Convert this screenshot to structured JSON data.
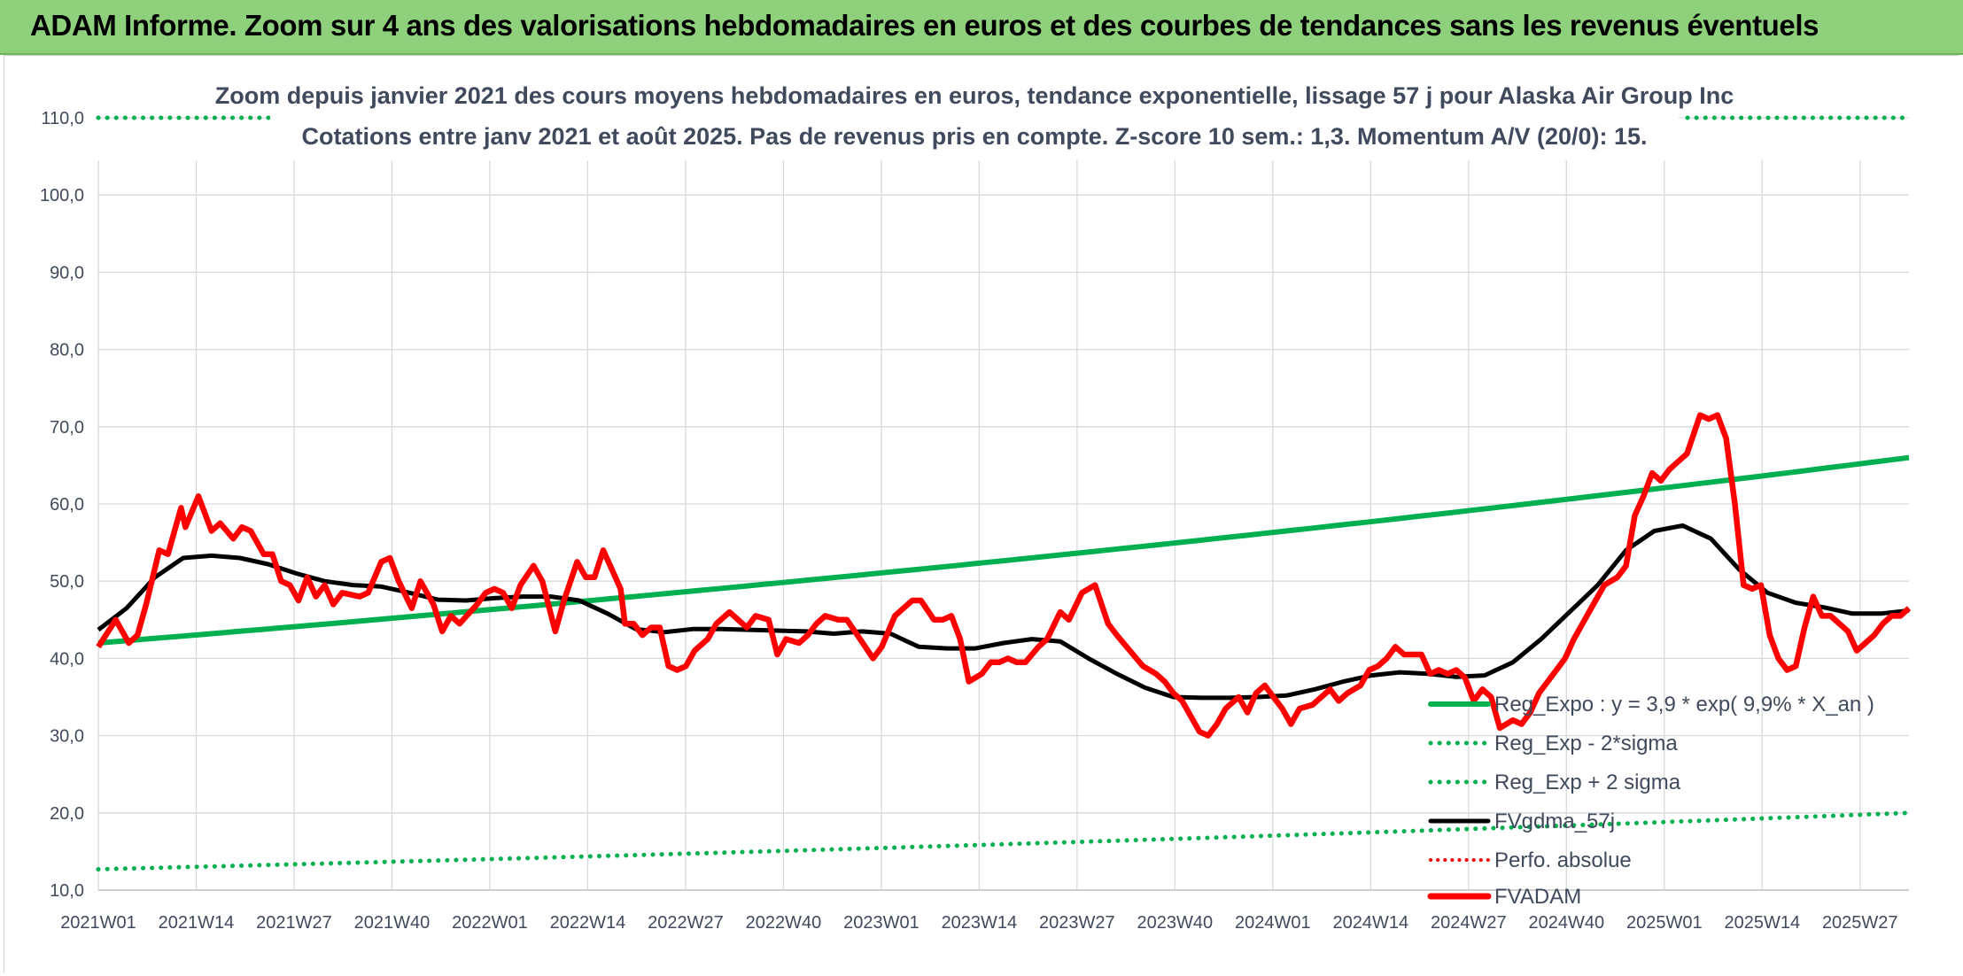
{
  "header": {
    "title": "ADAM Informe. Zoom sur 4 ans des valorisations hebdomadaires en euros et des courbes de tendances sans les revenus éventuels"
  },
  "colors": {
    "banner": "#8fd07c",
    "trend": "#00b050",
    "fv": "#000000",
    "adam": "#ff0000",
    "perfo": "#ff0000",
    "text": "#404a5c",
    "grid": "#d9d9d9"
  },
  "chart_data": {
    "type": "line",
    "title": "Zoom depuis janvier 2021 des cours moyens hebdomadaires en euros, tendance exponentielle, lissage 57 j pour Alaska Air Group Inc",
    "subtitle": "Cotations entre janv 2021 et août 2025. Pas de revenus pris en compte. Z-score 10 sem.: 1,3. Momentum A/V (20/0): 15.",
    "ylim": [
      10,
      110
    ],
    "yticks": [
      "10,0",
      "20,0",
      "30,0",
      "40,0",
      "50,0",
      "60,0",
      "70,0",
      "80,0",
      "90,0",
      "100,0",
      "110,0"
    ],
    "x_ticks": [
      "2021W01",
      "2021W14",
      "2021W27",
      "2021W40",
      "2022W01",
      "2022W14",
      "2022W27",
      "2022W40",
      "2023W01",
      "2023W14",
      "2023W27",
      "2023W40",
      "2024W01",
      "2024W14",
      "2024W27",
      "2024W40",
      "2025W01",
      "2025W14",
      "2025W27"
    ],
    "n_weeks": 241,
    "grid": true,
    "legend_position": "bottom-right",
    "series": [
      {
        "name": "Reg_Expo : y = 3,9 * exp( 9,9% * X_an )",
        "style": "solid",
        "color": "#00b050",
        "start": 42.0,
        "end": 66.0
      },
      {
        "name": "Reg_Exp - 2*sigma",
        "style": "dotted",
        "color": "#00b050",
        "start": 12.7,
        "end": 20.0
      },
      {
        "name": "Reg_Exp + 2 sigma",
        "style": "dotted",
        "color": "#00b050",
        "start": 110.0,
        "end": 110.0
      },
      {
        "name": "FVgdma_57j",
        "style": "solid",
        "color": "#000000",
        "points": [
          [
            0,
            43.7
          ],
          [
            5,
            46.5
          ],
          [
            10,
            50.5
          ],
          [
            15,
            53.0
          ],
          [
            20,
            53.3
          ],
          [
            25,
            53.0
          ],
          [
            30,
            52.2
          ],
          [
            35,
            51.0
          ],
          [
            40,
            50.0
          ],
          [
            45,
            49.5
          ],
          [
            50,
            49.3
          ],
          [
            55,
            48.5
          ],
          [
            60,
            47.6
          ],
          [
            65,
            47.5
          ],
          [
            70,
            47.8
          ],
          [
            75,
            48.0
          ],
          [
            80,
            48.0
          ],
          [
            85,
            47.5
          ],
          [
            90,
            45.8
          ],
          [
            95,
            43.8
          ],
          [
            100,
            43.4
          ],
          [
            105,
            43.8
          ],
          [
            110,
            43.8
          ],
          [
            115,
            43.7
          ],
          [
            120,
            43.6
          ],
          [
            125,
            43.5
          ],
          [
            130,
            43.2
          ],
          [
            135,
            43.5
          ],
          [
            140,
            43.2
          ],
          [
            145,
            41.5
          ],
          [
            150,
            41.3
          ],
          [
            155,
            41.3
          ],
          [
            160,
            42.0
          ],
          [
            165,
            42.5
          ],
          [
            170,
            42.2
          ],
          [
            175,
            40.0
          ],
          [
            180,
            38.0
          ],
          [
            185,
            36.2
          ],
          [
            190,
            35.0
          ],
          [
            195,
            34.9
          ],
          [
            200,
            34.9
          ],
          [
            205,
            35.0
          ],
          [
            210,
            35.2
          ],
          [
            215,
            36.0
          ],
          [
            220,
            37.0
          ],
          [
            225,
            37.8
          ],
          [
            230,
            38.2
          ],
          [
            235,
            38.0
          ],
          [
            240,
            37.6
          ],
          [
            245,
            37.8
          ],
          [
            250,
            39.5
          ],
          [
            255,
            42.5
          ],
          [
            260,
            46.0
          ],
          [
            265,
            49.5
          ],
          [
            270,
            54.0
          ],
          [
            275,
            56.5
          ],
          [
            280,
            57.2
          ],
          [
            285,
            55.5
          ],
          [
            290,
            51.5
          ],
          [
            295,
            48.5
          ],
          [
            300,
            47.2
          ],
          [
            305,
            46.6
          ],
          [
            310,
            45.8
          ],
          [
            315,
            45.8
          ],
          [
            320,
            46.2
          ]
        ]
      },
      {
        "name": "Perfo. absolue",
        "style": "dotted",
        "color": "#ff0000",
        "points": []
      },
      {
        "name": "FVADAM",
        "style": "solid",
        "color": "#ff0000",
        "points": [
          [
            0,
            41.5
          ],
          [
            4,
            45.0
          ],
          [
            7,
            42.0
          ],
          [
            9,
            43.0
          ],
          [
            11,
            47.0
          ],
          [
            14,
            54.0
          ],
          [
            16,
            53.5
          ],
          [
            19,
            59.5
          ],
          [
            20,
            57.0
          ],
          [
            23,
            61.0
          ],
          [
            26,
            56.5
          ],
          [
            28,
            57.5
          ],
          [
            31,
            55.5
          ],
          [
            33,
            57.0
          ],
          [
            35,
            56.5
          ],
          [
            38,
            53.5
          ],
          [
            40,
            53.5
          ],
          [
            42,
            50.0
          ],
          [
            44,
            49.5
          ],
          [
            46,
            47.5
          ],
          [
            48,
            50.5
          ],
          [
            50,
            48.0
          ],
          [
            52,
            49.5
          ],
          [
            54,
            47.0
          ],
          [
            56,
            48.5
          ],
          [
            60,
            48.0
          ],
          [
            62,
            48.5
          ],
          [
            65,
            52.5
          ],
          [
            67,
            53.0
          ],
          [
            69,
            50.0
          ],
          [
            72,
            46.5
          ],
          [
            74,
            50.0
          ],
          [
            77,
            47.0
          ],
          [
            79,
            43.5
          ],
          [
            81,
            45.5
          ],
          [
            83,
            44.5
          ],
          [
            87,
            47.0
          ],
          [
            89,
            48.5
          ],
          [
            91,
            49.0
          ],
          [
            93,
            48.5
          ],
          [
            95,
            46.5
          ],
          [
            97,
            49.5
          ],
          [
            100,
            52.0
          ],
          [
            102,
            50.0
          ],
          [
            105,
            43.5
          ],
          [
            107,
            47.5
          ],
          [
            110,
            52.5
          ],
          [
            112,
            50.5
          ],
          [
            114,
            50.5
          ],
          [
            116,
            54.0
          ],
          [
            118,
            51.5
          ],
          [
            120,
            49.0
          ],
          [
            121,
            44.5
          ],
          [
            123,
            44.5
          ],
          [
            125,
            43.0
          ],
          [
            127,
            44.0
          ],
          [
            129,
            44.0
          ],
          [
            131,
            39.0
          ],
          [
            133,
            38.5
          ],
          [
            135,
            39.0
          ],
          [
            137,
            41.0
          ],
          [
            140,
            42.5
          ],
          [
            142,
            44.5
          ],
          [
            145,
            46.0
          ],
          [
            147,
            45.0
          ],
          [
            149,
            44.0
          ],
          [
            151,
            45.5
          ],
          [
            154,
            45.0
          ],
          [
            156,
            40.5
          ],
          [
            158,
            42.5
          ],
          [
            161,
            42.0
          ],
          [
            163,
            43.0
          ],
          [
            165,
            44.5
          ],
          [
            167,
            45.5
          ],
          [
            170,
            45.0
          ],
          [
            172,
            45.0
          ],
          [
            175,
            42.5
          ],
          [
            178,
            40.0
          ],
          [
            180,
            41.5
          ],
          [
            183,
            45.5
          ],
          [
            185,
            46.5
          ],
          [
            187,
            47.5
          ],
          [
            189,
            47.5
          ],
          [
            192,
            45.0
          ],
          [
            194,
            45.0
          ],
          [
            196,
            45.5
          ],
          [
            198,
            42.5
          ],
          [
            200,
            37.0
          ],
          [
            203,
            38.0
          ],
          [
            205,
            39.5
          ],
          [
            207,
            39.5
          ],
          [
            209,
            40.0
          ],
          [
            211,
            39.5
          ],
          [
            213,
            39.5
          ],
          [
            216,
            41.5
          ],
          [
            218,
            42.5
          ],
          [
            221,
            46.0
          ],
          [
            223,
            45.0
          ],
          [
            226,
            48.5
          ],
          [
            229,
            49.5
          ],
          [
            232,
            44.5
          ],
          [
            234,
            43.0
          ],
          [
            237,
            41.0
          ],
          [
            240,
            39.0
          ],
          [
            243,
            38.0
          ],
          [
            245,
            37.0
          ],
          [
            247,
            35.5
          ],
          [
            249,
            34.5
          ],
          [
            251,
            32.5
          ],
          [
            253,
            30.5
          ],
          [
            255,
            30.0
          ],
          [
            257,
            31.5
          ],
          [
            259,
            33.5
          ],
          [
            262,
            35.0
          ],
          [
            264,
            33.0
          ],
          [
            266,
            35.5
          ],
          [
            268,
            36.5
          ],
          [
            270,
            35.0
          ],
          [
            272,
            33.5
          ],
          [
            274,
            31.5
          ],
          [
            276,
            33.5
          ],
          [
            279,
            34.0
          ],
          [
            281,
            35.0
          ],
          [
            283,
            36.0
          ],
          [
            285,
            34.5
          ],
          [
            287,
            35.5
          ],
          [
            290,
            36.5
          ],
          [
            292,
            38.5
          ],
          [
            294,
            39.0
          ],
          [
            296,
            40.0
          ],
          [
            298,
            41.5
          ],
          [
            300,
            40.5
          ],
          [
            302,
            40.5
          ],
          [
            304,
            40.5
          ],
          [
            306,
            38.0
          ],
          [
            308,
            38.5
          ],
          [
            310,
            38.0
          ],
          [
            312,
            38.5
          ],
          [
            314,
            37.5
          ],
          [
            316,
            34.5
          ],
          [
            318,
            36.0
          ],
          [
            320,
            35.0
          ],
          [
            322,
            31.0
          ],
          [
            325,
            32.0
          ],
          [
            327,
            31.5
          ],
          [
            329,
            33.0
          ],
          [
            331,
            35.5
          ],
          [
            333,
            37.0
          ],
          [
            335,
            38.5
          ],
          [
            337,
            40.0
          ],
          [
            339,
            42.5
          ],
          [
            341,
            44.5
          ],
          [
            344,
            47.5
          ],
          [
            346,
            49.5
          ],
          [
            349,
            50.5
          ],
          [
            351,
            52.0
          ],
          [
            353,
            58.5
          ],
          [
            355,
            61.0
          ],
          [
            357,
            64.0
          ],
          [
            359,
            63.0
          ],
          [
            361,
            64.5
          ],
          [
            363,
            65.5
          ],
          [
            365,
            66.5
          ],
          [
            368,
            71.5
          ],
          [
            370,
            71.0
          ],
          [
            372,
            71.5
          ],
          [
            374,
            68.5
          ],
          [
            376,
            60.0
          ],
          [
            378,
            49.5
          ],
          [
            380,
            49.0
          ],
          [
            382,
            49.5
          ],
          [
            384,
            43.0
          ],
          [
            386,
            40.0
          ],
          [
            388,
            38.5
          ],
          [
            390,
            39.0
          ],
          [
            392,
            44.0
          ],
          [
            394,
            48.0
          ],
          [
            396,
            45.5
          ],
          [
            398,
            45.5
          ],
          [
            400,
            44.5
          ],
          [
            402,
            43.5
          ],
          [
            404,
            41.0
          ],
          [
            406,
            42.0
          ],
          [
            408,
            43.0
          ],
          [
            410,
            44.5
          ],
          [
            412,
            45.5
          ],
          [
            414,
            45.5
          ],
          [
            416,
            46.5
          ]
        ]
      }
    ]
  }
}
